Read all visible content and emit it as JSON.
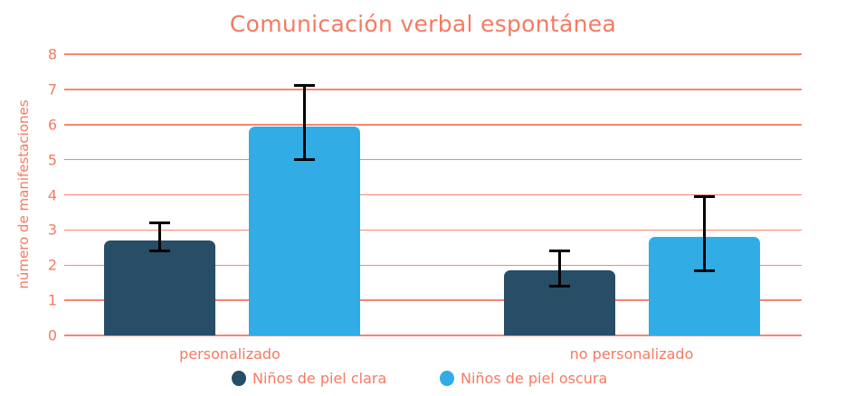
{
  "title": "Comunicación verbal espontánea",
  "colors": {
    "text": "#f57a62",
    "grid": "#f7866f",
    "series_clara": "#274d67",
    "series_oscura": "#31ace4",
    "error_bar": "#000000"
  },
  "chart_data": {
    "type": "bar",
    "title": "Comunicación verbal espontánea",
    "xlabel": "",
    "ylabel": "número de manifestaciones",
    "ylim": [
      0,
      8
    ],
    "yticks": [
      0,
      1,
      2,
      3,
      4,
      5,
      6,
      7,
      8
    ],
    "grid": true,
    "legend_position": "bottom",
    "categories": [
      "personalizado",
      "no personalizado"
    ],
    "series": [
      {
        "name": "Niños de piel clara",
        "color": "#274d67",
        "values": [
          2.7,
          1.85
        ],
        "error_low": [
          2.4,
          1.4
        ],
        "error_high": [
          3.2,
          2.4
        ]
      },
      {
        "name": "Niños de piel oscura",
        "color": "#31ace4",
        "values": [
          5.95,
          2.8
        ],
        "error_low": [
          5.0,
          1.85
        ],
        "error_high": [
          7.1,
          3.95
        ]
      }
    ]
  },
  "legend": [
    {
      "label": "Niños de piel clara",
      "color": "#274d67"
    },
    {
      "label": "Niños de piel oscura",
      "color": "#31ace4"
    }
  ]
}
